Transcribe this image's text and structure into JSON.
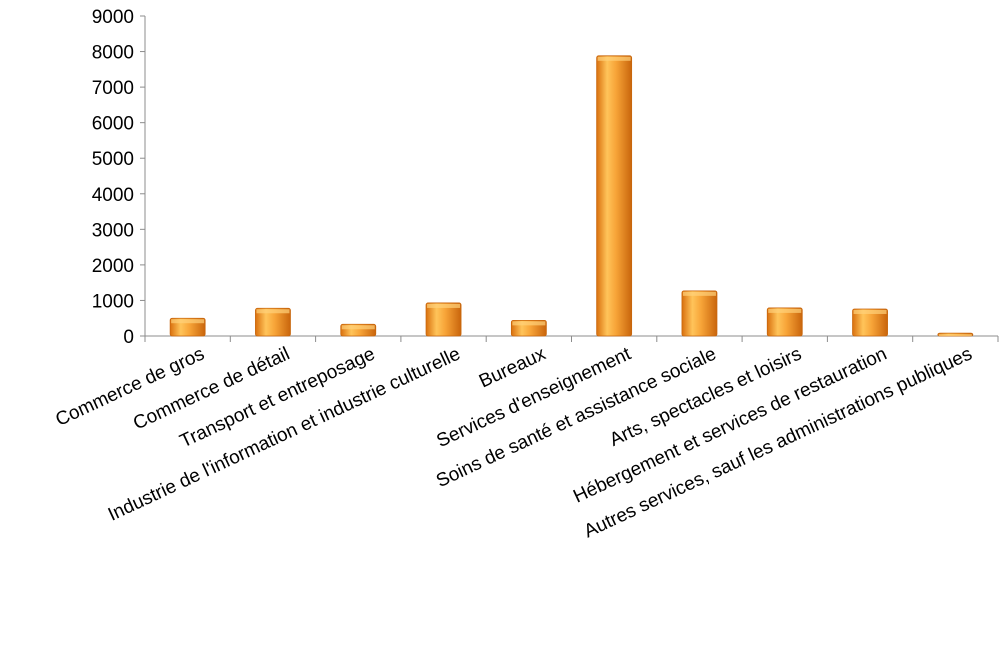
{
  "chart_data": {
    "type": "bar",
    "categories": [
      "Commerce de gros",
      "Commerce de détail",
      "Transport et entreposage",
      "Industrie de l'information et industrie culturelle",
      "Bureaux",
      "Services d'enseignement",
      "Soins de santé et assistance sociale",
      "Arts, spectacles et loisirs",
      "Hébergement et services de restauration",
      "Autres services, sauf les administrations publiques"
    ],
    "values": [
      500,
      780,
      330,
      930,
      440,
      7880,
      1270,
      790,
      760,
      80
    ],
    "title": "",
    "xlabel": "",
    "ylabel": "",
    "ylim": [
      0,
      9000
    ],
    "yticks": [
      0,
      1000,
      2000,
      3000,
      4000,
      5000,
      6000,
      7000,
      8000,
      9000
    ],
    "grid": false,
    "legend": "none",
    "bar_color": "#f0901e",
    "bar_highlight": "#ffd27a",
    "bar_shadow": "#c8660c"
  }
}
